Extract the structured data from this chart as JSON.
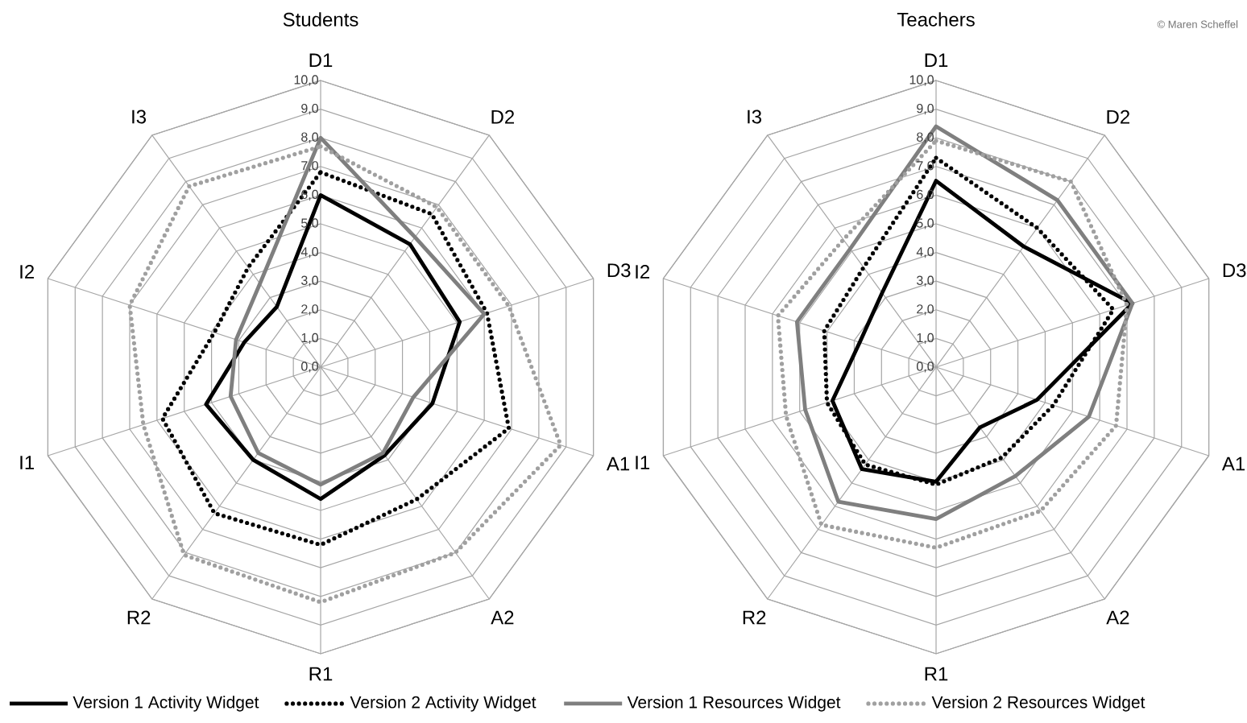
{
  "chart_data": [
    {
      "type": "radar",
      "title": "Students",
      "categories": [
        "D1",
        "D2",
        "D3",
        "A1",
        "A2",
        "R1",
        "R2",
        "I1",
        "I2",
        "I3"
      ],
      "ylim": [
        0,
        10
      ],
      "yticks": [
        {
          "value": 0,
          "label": "0,0"
        },
        {
          "value": 1,
          "label": "1,0"
        },
        {
          "value": 2,
          "label": "2,0"
        },
        {
          "value": 3,
          "label": "3,0"
        },
        {
          "value": 4,
          "label": "4,0"
        },
        {
          "value": 5,
          "label": "5,0"
        },
        {
          "value": 6,
          "label": "6,0"
        },
        {
          "value": 7,
          "label": "7,0"
        },
        {
          "value": 8,
          "label": "8,0"
        },
        {
          "value": 9,
          "label": "9,0"
        },
        {
          "value": 10,
          "label": "10,0"
        }
      ],
      "grid": true,
      "legend": "bottom",
      "series": [
        {
          "name": "Version 1 Activity Widget",
          "color": "#000000",
          "line_style": "solid",
          "values": [
            6.0,
            5.3,
            5.1,
            4.1,
            3.8,
            4.6,
            4.0,
            4.2,
            2.8,
            2.6
          ]
        },
        {
          "name": "Version 2 Activity Widget",
          "color": "#000000",
          "line_style": "dotted",
          "values": [
            6.8,
            6.6,
            6.1,
            6.9,
            5.7,
            6.2,
            6.3,
            5.8,
            3.9,
            4.3
          ]
        },
        {
          "name": "Version 1 Resources Widget",
          "color": "#7f7f7f",
          "line_style": "solid",
          "values": [
            8.0,
            5.6,
            6.0,
            3.4,
            3.7,
            4.1,
            3.7,
            3.3,
            3.1,
            3.6
          ]
        },
        {
          "name": "Version 2 Resources Widget",
          "color": "#a0a0a0",
          "line_style": "dotted",
          "values": [
            7.7,
            6.9,
            6.9,
            8.8,
            8.0,
            8.2,
            8.1,
            6.5,
            7.0,
            7.8
          ]
        }
      ]
    },
    {
      "type": "radar",
      "title": "Teachers",
      "categories": [
        "D1",
        "D2",
        "D3",
        "A1",
        "A2",
        "R1",
        "R2",
        "I1",
        "I2",
        "I3"
      ],
      "ylim": [
        0,
        10
      ],
      "yticks": [
        {
          "value": 0,
          "label": "0,0"
        },
        {
          "value": 1,
          "label": "1,0"
        },
        {
          "value": 2,
          "label": "2,0"
        },
        {
          "value": 3,
          "label": "3,0"
        },
        {
          "value": 4,
          "label": "4,0"
        },
        {
          "value": 5,
          "label": "5,0"
        },
        {
          "value": 6,
          "label": "6,0"
        },
        {
          "value": 7,
          "label": "7,0"
        },
        {
          "value": 8,
          "label": "8,0"
        },
        {
          "value": 9,
          "label": "9,0"
        },
        {
          "value": 10,
          "label": "10,0"
        }
      ],
      "grid": true,
      "annotations": [
        "© Maren Scheffel"
      ],
      "series": [
        {
          "color": "#000000",
          "line_style": "solid",
          "values": [
            6.5,
            5.2,
            7.2,
            3.7,
            2.6,
            4.0,
            4.4,
            3.8,
            2.8,
            3.2
          ]
        },
        {
          "color": "#000000",
          "line_style": "dotted",
          "values": [
            7.3,
            6.0,
            6.5,
            4.3,
            3.9,
            4.1,
            4.2,
            4.0,
            4.1,
            4.3
          ]
        },
        {
          "color": "#7f7f7f",
          "line_style": "solid",
          "values": [
            8.4,
            7.2,
            7.2,
            5.6,
            4.7,
            5.3,
            5.8,
            4.8,
            5.1,
            5.1
          ]
        },
        {
          "color": "#a0a0a0",
          "line_style": "dotted",
          "values": [
            7.9,
            8.0,
            7.0,
            6.6,
            6.2,
            6.3,
            6.8,
            5.5,
            5.8,
            5.5
          ]
        }
      ]
    }
  ]
}
